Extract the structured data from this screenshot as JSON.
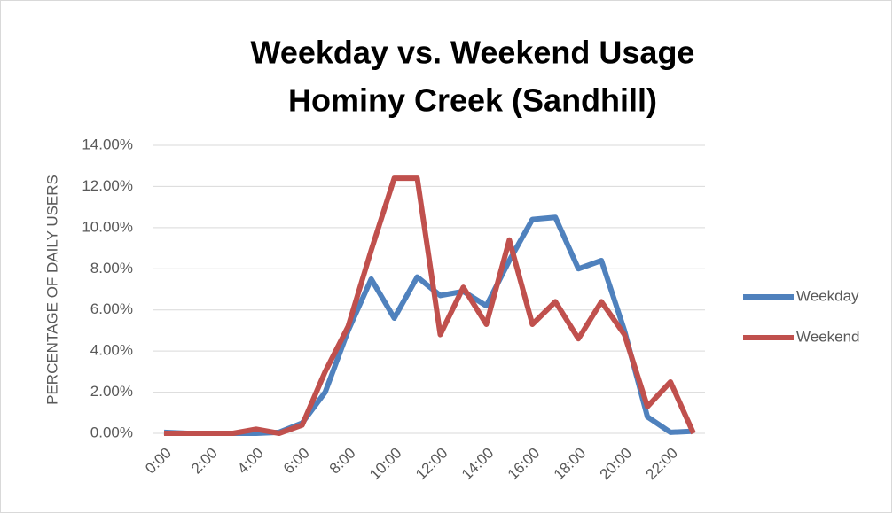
{
  "chart_data": {
    "type": "line",
    "title": [
      "Weekday vs. Weekend Usage",
      "Hominy Creek (Sandhill)"
    ],
    "y_label": "PERCENTAGE OF DAILY USERS",
    "categories": [
      "0:00",
      null,
      "2:00",
      null,
      "4:00",
      null,
      "6:00",
      null,
      "8:00",
      null,
      "10:00",
      null,
      "12:00",
      null,
      "14:00",
      null,
      "16:00",
      null,
      "18:00",
      null,
      "20:00",
      null,
      "22:00",
      null
    ],
    "series": [
      {
        "name": "Weekday",
        "color": "#4f81bd",
        "values": [
          0.05,
          0,
          0,
          0,
          0,
          0.05,
          0.5,
          2.0,
          5.0,
          7.5,
          5.6,
          7.6,
          6.7,
          6.9,
          6.2,
          8.4,
          10.4,
          10.5,
          8.0,
          8.4,
          5.0,
          0.8,
          0.05,
          0.1
        ]
      },
      {
        "name": "Weekend",
        "color": "#c0504d",
        "values": [
          0,
          0,
          0,
          0,
          0.2,
          0,
          0.4,
          3.0,
          5.2,
          8.9,
          12.4,
          12.4,
          4.8,
          7.1,
          5.3,
          9.4,
          5.3,
          6.4,
          4.6,
          6.4,
          4.8,
          1.3,
          2.5,
          0
        ]
      }
    ],
    "ylim": [
      0,
      14
    ],
    "yticks": [
      {
        "value": 0,
        "label": "0.00%"
      },
      {
        "value": 2,
        "label": "2.00%"
      },
      {
        "value": 4,
        "label": "4.00%"
      },
      {
        "value": 6,
        "label": "6.00%"
      },
      {
        "value": 8,
        "label": "8.00%"
      },
      {
        "value": 10,
        "label": "10.00%"
      },
      {
        "value": 12,
        "label": "12.00%"
      },
      {
        "value": 14,
        "label": "14.00%"
      }
    ],
    "grid": true,
    "legend": "right"
  }
}
